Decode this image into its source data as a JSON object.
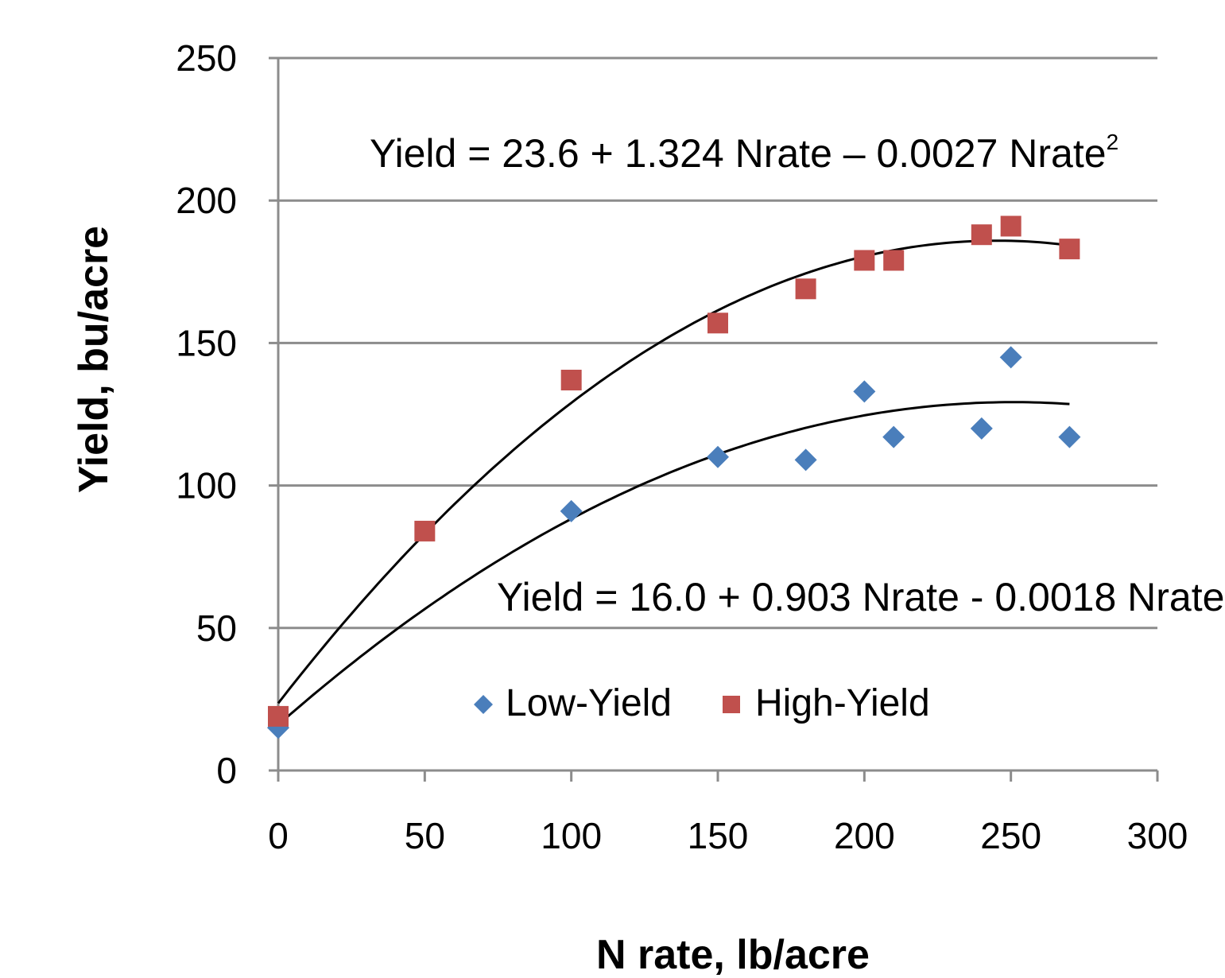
{
  "chart_data": {
    "type": "scatter",
    "xlabel": "N rate, lb/acre",
    "ylabel": "Yield, bu/acre",
    "xlim": [
      0,
      300
    ],
    "ylim": [
      0,
      250
    ],
    "x_ticks": [
      "0",
      "50",
      "100",
      "150",
      "200",
      "250",
      "300"
    ],
    "y_ticks": [
      "0",
      "50",
      "100",
      "150",
      "200",
      "250"
    ],
    "grid": "horizontal",
    "legend_position": "bottom-center",
    "series": [
      {
        "name": "Low-Yield",
        "marker": "diamond",
        "color": "#4a7ebb",
        "points": [
          [
            0,
            15
          ],
          [
            100,
            91
          ],
          [
            150,
            110
          ],
          [
            180,
            109
          ],
          [
            200,
            133
          ],
          [
            210,
            117
          ],
          [
            240,
            120
          ],
          [
            250,
            145
          ],
          [
            270,
            117
          ]
        ]
      },
      {
        "name": "High-Yield",
        "marker": "square",
        "color": "#c0504d",
        "points": [
          [
            0,
            19
          ],
          [
            50,
            84
          ],
          [
            100,
            137
          ],
          [
            150,
            157
          ],
          [
            180,
            169
          ],
          [
            200,
            179
          ],
          [
            210,
            179
          ],
          [
            240,
            188
          ],
          [
            250,
            191
          ],
          [
            270,
            183
          ]
        ]
      }
    ],
    "trendlines": [
      {
        "series": "High-Yield",
        "a": 23.6,
        "b": 1.324,
        "c": -0.0027,
        "x_range": [
          0,
          270
        ]
      },
      {
        "series": "Low-Yield",
        "a": 16.0,
        "b": 0.903,
        "c": -0.0018,
        "x_range": [
          0,
          270
        ]
      }
    ],
    "annotations": {
      "high_equation": "Yield = 23.6 + 1.324 Nrate – 0.0027 Nrate",
      "low_equation": "Yield = 16.0 + 0.903 Nrate - 0.0018 Nrate",
      "superscript": "2"
    }
  }
}
